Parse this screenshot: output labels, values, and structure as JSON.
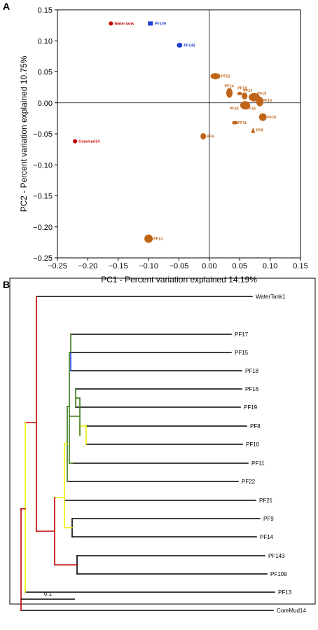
{
  "panels": {
    "a_letter": "A",
    "b_letter": "B"
  },
  "chart_data": [
    {
      "type": "scatter",
      "panel": "A",
      "xlabel": "PC1 - Percent variation explained 14.19%",
      "ylabel": "PC2 - Percent variation explained 10.75%",
      "xlim": [
        -0.25,
        0.15
      ],
      "ylim": [
        -0.25,
        0.15
      ],
      "xticks": [
        -0.25,
        -0.2,
        -0.15,
        -0.1,
        -0.05,
        0.0,
        0.05,
        0.1,
        0.15
      ],
      "yticks": [
        -0.25,
        -0.2,
        -0.15,
        -0.1,
        -0.05,
        0.0,
        0.05,
        0.1,
        0.15
      ],
      "xtick_labels": [
        "−0.25",
        "−0.20",
        "−0.15",
        "−0.10",
        "−0.05",
        "0.00",
        "0.05",
        "0.10",
        "0.15"
      ],
      "ytick_labels": [
        "−0.25",
        "−0.20",
        "−0.15",
        "−0.10",
        "−0.05",
        "0.00",
        "0.05",
        "0.10",
        "0.15"
      ],
      "grid": false,
      "zero_lines": true,
      "colors": {
        "red": "#c00000",
        "blue": "#1f3fd0",
        "orange": "#c06418"
      },
      "points": [
        {
          "label": "Water tank",
          "x": -0.162,
          "y": 0.128,
          "color": "red",
          "shape": "circle"
        },
        {
          "label": "Coremud14",
          "x": -0.221,
          "y": -0.062,
          "color": "red",
          "shape": "circle"
        },
        {
          "label": "PF109",
          "x": -0.097,
          "y": 0.128,
          "color": "blue",
          "shape": "square"
        },
        {
          "label": "PF143",
          "x": -0.049,
          "y": 0.093,
          "color": "blue",
          "shape": "ellipse"
        },
        {
          "label": "PF21",
          "x": 0.01,
          "y": 0.043,
          "color": "orange",
          "shape": "ellipse"
        },
        {
          "label": "PF14",
          "x": 0.033,
          "y": 0.016,
          "color": "orange",
          "shape": "ellipse"
        },
        {
          "label": "PF18",
          "x": 0.05,
          "y": 0.015,
          "color": "orange",
          "shape": "ellipse"
        },
        {
          "label": "PF17",
          "x": 0.058,
          "y": 0.011,
          "color": "orange",
          "shape": "ellipse"
        },
        {
          "label": "PF19",
          "x": 0.074,
          "y": 0.009,
          "color": "orange",
          "shape": "ellipse"
        },
        {
          "label": "PF15",
          "x": 0.083,
          "y": 0.002,
          "color": "orange",
          "shape": "ellipse"
        },
        {
          "label": "PF22",
          "x": 0.054,
          "y": -0.004,
          "color": "orange",
          "shape": "ellipse"
        },
        {
          "label": "PF16",
          "x": 0.059,
          "y": -0.004,
          "color": "orange",
          "shape": "ellipse"
        },
        {
          "label": "PF10",
          "x": 0.088,
          "y": -0.023,
          "color": "orange",
          "shape": "ellipse"
        },
        {
          "label": "PF11",
          "x": 0.042,
          "y": -0.032,
          "color": "orange",
          "shape": "ellipse"
        },
        {
          "label": "PF8",
          "x": 0.072,
          "y": -0.044,
          "color": "orange",
          "shape": "triangle"
        },
        {
          "label": "PF9",
          "x": -0.01,
          "y": -0.054,
          "color": "orange",
          "shape": "ellipse"
        },
        {
          "label": "PF13",
          "x": -0.1,
          "y": -0.219,
          "color": "orange",
          "shape": "circle"
        }
      ]
    },
    {
      "type": "dendrogram",
      "panel": "B",
      "scale_bar": {
        "label": "0.1",
        "length": 0.1
      },
      "branch_colors": {
        "black": "#000000",
        "red": "#c00000",
        "yellow": "#f0f000",
        "green": "#3a7a1a",
        "blue": "#2040e0"
      },
      "leaves": [
        {
          "label": "WaterTank1"
        },
        {
          "label": "PF17"
        },
        {
          "label": "PF15"
        },
        {
          "label": "PF18"
        },
        {
          "label": "PF16"
        },
        {
          "label": "PF19"
        },
        {
          "label": "PF8"
        },
        {
          "label": "PF10"
        },
        {
          "label": "PF11"
        },
        {
          "label": "PF22"
        },
        {
          "label": "PF21"
        },
        {
          "label": "PF9"
        },
        {
          "label": "PF14"
        },
        {
          "label": "PF143"
        },
        {
          "label": "PF109"
        },
        {
          "label": "PF13"
        },
        {
          "label": "CoreMud14"
        }
      ]
    }
  ]
}
